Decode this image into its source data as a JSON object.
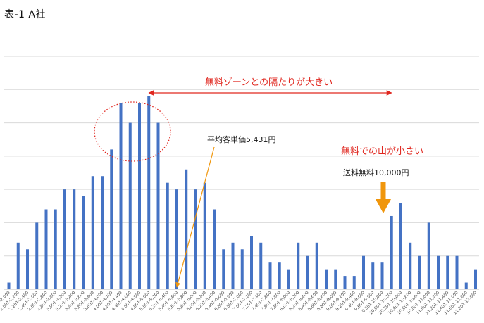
{
  "title": "表-1 A社",
  "chart_data": {
    "type": "bar",
    "categories": [
      "~2,000",
      "2,001-2,200",
      "2,201-2,400",
      "2,401-2,600",
      "2,601-2,800",
      "2,801-3,000",
      "3,001-3,200",
      "3,201-3,400",
      "3,401-3,600",
      "3,601-3,800",
      "3,801-4,000",
      "4,001-4,200",
      "4,201-4,400",
      "4,401-4,600",
      "4,601-4,800",
      "4,801-5,000",
      "5,001-5,200",
      "5,201-5,400",
      "5,401-5,600",
      "5,601-5,800",
      "5,801-6,000",
      "6,001-6,200",
      "6,201-6,400",
      "6,401-6,600",
      "6,601-6,800",
      "6,801-7,000",
      "7,001-7,200",
      "7,201-7,400",
      "7,401-7,600",
      "7,601-7,800",
      "7,801-8,000",
      "8,001-8,200",
      "8,201-8,400",
      "8,401-8,600",
      "8,601-8,800",
      "8,801-9,000",
      "9,001-9,200",
      "9,201-9,400",
      "9,401-9,600",
      "9,601-9,800",
      "9,801-10,000",
      "10,001-10,200",
      "10,201-10,400",
      "10,401-10,600",
      "10,601-10,800",
      "10,801-11,000",
      "11,001-11,200",
      "11,201-11,400",
      "11,401-11,600",
      "11,601-11,800",
      "11,801-12,000"
    ],
    "values": [
      1,
      7,
      6,
      10,
      12,
      12,
      15,
      15,
      14,
      17,
      17,
      21,
      28,
      25,
      28,
      29,
      25,
      16,
      15,
      18,
      15,
      16,
      12,
      6,
      7,
      6,
      8,
      7,
      4,
      4,
      3,
      7,
      5,
      7,
      3,
      3,
      2,
      2,
      5,
      4,
      4,
      11,
      13,
      7,
      5,
      10,
      5,
      5,
      5,
      1,
      3
    ],
    "ylim": [
      0,
      35
    ],
    "grid": true,
    "bar_color": "#4472c4",
    "annotations": {
      "gap_label": "無料ゾーンとの隔たりが大きい",
      "avg_label": "平均客単価5,431円",
      "small_peak_label": "無料での山が小さい",
      "free_shipping_label": "送料無料10,000円"
    },
    "colors": {
      "red": "#e0271f",
      "orange": "#f0960c",
      "gridline": "#d9d9d9"
    }
  }
}
